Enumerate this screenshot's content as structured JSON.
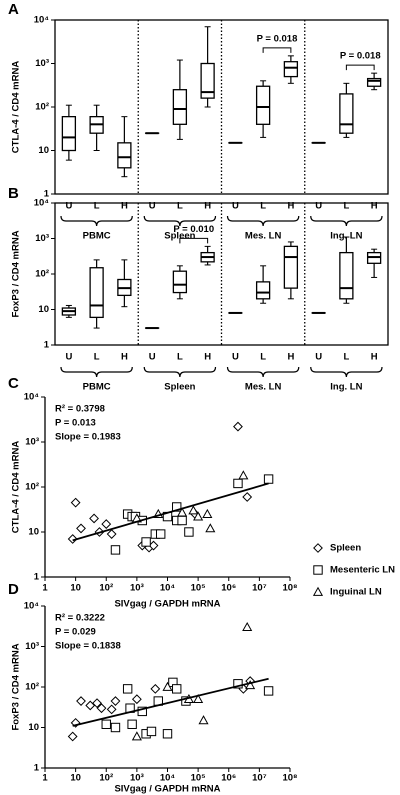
{
  "chart_data": [
    {
      "type": "box",
      "panel": "A",
      "ylabel": "CTLA-4 / CD4 mRNA",
      "log_y": true,
      "ylim": [
        1,
        10000
      ],
      "yticks": [
        1,
        10,
        {
          "value": 100,
          "label": "10²"
        },
        {
          "value": 1000,
          "label": "10³"
        },
        {
          "value": 10000,
          "label": "10⁴"
        }
      ],
      "groups": [
        {
          "name": "PBMC",
          "categories": [
            "U",
            "L",
            "H"
          ],
          "boxes": [
            {
              "whislo": 6,
              "q1": 10,
              "med": 20,
              "q3": 60,
              "whishi": 110
            },
            {
              "whislo": 10,
              "q1": 25,
              "med": 40,
              "q3": 60,
              "whishi": 110
            },
            {
              "whislo": 2.5,
              "q1": 4,
              "med": 7,
              "q3": 15,
              "whishi": 60
            }
          ]
        },
        {
          "name": "Spleen",
          "categories": [
            "U",
            "L",
            "H"
          ],
          "boxes": [
            {
              "whislo": 25,
              "q1": 25,
              "med": 25,
              "q3": 25,
              "whishi": 25
            },
            {
              "whislo": 18,
              "q1": 40,
              "med": 90,
              "q3": 250,
              "whishi": 1200
            },
            {
              "whislo": 100,
              "q1": 160,
              "med": 220,
              "q3": 1000,
              "whishi": 7000
            }
          ]
        },
        {
          "name": "Mes. LN",
          "categories": [
            "U",
            "L",
            "H"
          ],
          "boxes": [
            {
              "whislo": 15,
              "q1": 15,
              "med": 15,
              "q3": 15,
              "whishi": 15
            },
            {
              "whislo": 20,
              "q1": 40,
              "med": 100,
              "q3": 300,
              "whishi": 400
            },
            {
              "whislo": 350,
              "q1": 500,
              "med": 800,
              "q3": 1100,
              "whishi": 1500
            }
          ]
        },
        {
          "name": "Ing. LN",
          "categories": [
            "U",
            "L",
            "H"
          ],
          "boxes": [
            {
              "whislo": 15,
              "q1": 15,
              "med": 15,
              "q3": 15,
              "whishi": 15
            },
            {
              "whislo": 20,
              "q1": 25,
              "med": 40,
              "q3": 200,
              "whishi": 350
            },
            {
              "whislo": 250,
              "q1": 300,
              "med": 400,
              "q3": 450,
              "whishi": 600
            }
          ]
        }
      ],
      "annotations": [
        {
          "text": "P = 0.018",
          "group": 2,
          "between": [
            1,
            2
          ]
        },
        {
          "text": "P = 0.018",
          "group": 3,
          "between": [
            1,
            2
          ]
        }
      ]
    },
    {
      "type": "box",
      "panel": "B",
      "ylabel": "FoxP3 / CD4 mRNA",
      "log_y": true,
      "ylim": [
        1,
        10000
      ],
      "yticks": [
        1,
        10,
        {
          "value": 100,
          "label": "10²"
        },
        {
          "value": 1000,
          "label": "10³"
        },
        {
          "value": 10000,
          "label": "10⁴"
        }
      ],
      "groups": [
        {
          "name": "PBMC",
          "categories": [
            "U",
            "L",
            "H"
          ],
          "boxes": [
            {
              "whislo": 6,
              "q1": 7,
              "med": 9,
              "q3": 11,
              "whishi": 13
            },
            {
              "whislo": 3,
              "q1": 6,
              "med": 13,
              "q3": 150,
              "whishi": 250
            },
            {
              "whislo": 12,
              "q1": 25,
              "med": 40,
              "q3": 70,
              "whishi": 250
            }
          ]
        },
        {
          "name": "Spleen",
          "categories": [
            "U",
            "L",
            "H"
          ],
          "boxes": [
            {
              "whislo": 3,
              "q1": 3,
              "med": 3,
              "q3": 3,
              "whishi": 3
            },
            {
              "whislo": 20,
              "q1": 30,
              "med": 50,
              "q3": 120,
              "whishi": 170
            },
            {
              "whislo": 180,
              "q1": 220,
              "med": 300,
              "q3": 400,
              "whishi": 600
            }
          ]
        },
        {
          "name": "Mes. LN",
          "categories": [
            "U",
            "L",
            "H"
          ],
          "boxes": [
            {
              "whislo": 8,
              "q1": 8,
              "med": 8,
              "q3": 8,
              "whishi": 8
            },
            {
              "whislo": 15,
              "q1": 20,
              "med": 30,
              "q3": 60,
              "whishi": 170
            },
            {
              "whislo": 20,
              "q1": 40,
              "med": 300,
              "q3": 600,
              "whishi": 800
            }
          ]
        },
        {
          "name": "Ing. LN",
          "categories": [
            "U",
            "L",
            "H"
          ],
          "boxes": [
            {
              "whislo": 8,
              "q1": 8,
              "med": 8,
              "q3": 8,
              "whishi": 8
            },
            {
              "whislo": 15,
              "q1": 20,
              "med": 40,
              "q3": 400,
              "whishi": 1100
            },
            {
              "whislo": 80,
              "q1": 200,
              "med": 300,
              "q3": 400,
              "whishi": 500
            }
          ]
        }
      ],
      "annotations": [
        {
          "text": "P = 0.010",
          "group": 1,
          "between": [
            1,
            2
          ]
        }
      ]
    },
    {
      "type": "scatter",
      "panel": "C",
      "xlabel": "SIVgag / GAPDH mRNA",
      "ylabel": "CTLA-4 / CD4 mRNA",
      "log_x": true,
      "log_y": true,
      "xlim": [
        1,
        100000000
      ],
      "ylim": [
        1,
        10000
      ],
      "xticks": [
        1,
        10,
        {
          "value": 100,
          "label": "10²"
        },
        {
          "value": 1000,
          "label": "10³"
        },
        {
          "value": 10000,
          "label": "10⁴"
        },
        {
          "value": 100000,
          "label": "10⁵"
        },
        {
          "value": 1000000,
          "label": "10⁶"
        },
        {
          "value": 10000000,
          "label": "10⁷"
        },
        {
          "value": 100000000,
          "label": "10⁸"
        }
      ],
      "yticks": [
        1,
        10,
        {
          "value": 100,
          "label": "10²"
        },
        {
          "value": 1000,
          "label": "10³"
        },
        {
          "value": 10000,
          "label": "10⁴"
        }
      ],
      "stats": [
        "R² = 0.3798",
        "P = 0.013",
        "Slope = 0.1983"
      ],
      "fit": {
        "x": [
          8,
          20000000
        ],
        "y": [
          6.5,
          120
        ]
      },
      "legend": true,
      "series": [
        {
          "name": "Spleen",
          "marker": "diamond",
          "x": [
            8,
            10,
            15,
            40,
            60,
            100,
            150,
            1500,
            2500,
            3500,
            80000,
            2000000,
            4000000
          ],
          "y": [
            7,
            45,
            12,
            20,
            10,
            15,
            9,
            5,
            4.5,
            5,
            25,
            2200,
            60
          ]
        },
        {
          "name": "Mesenteric LN",
          "marker": "square",
          "x": [
            200,
            500,
            700,
            900,
            1500,
            2000,
            4000,
            6000,
            10000,
            20000,
            20000,
            30000,
            50000,
            2000000,
            20000000
          ],
          "y": [
            4,
            25,
            22,
            22,
            18,
            6,
            9,
            9,
            22,
            36,
            18,
            18,
            10,
            120,
            150
          ]
        },
        {
          "name": "Inguinal LN",
          "marker": "triangle",
          "x": [
            1000,
            5000,
            30000,
            70000,
            100000,
            200000,
            250000,
            3000000
          ],
          "y": [
            20,
            25,
            27,
            30,
            22,
            25,
            12,
            180
          ]
        }
      ]
    },
    {
      "type": "scatter",
      "panel": "D",
      "xlabel": "SIVgag / GAPDH mRNA",
      "ylabel": "FoxP3 / CD4 mRNA",
      "log_x": true,
      "log_y": true,
      "xlim": [
        1,
        100000000
      ],
      "ylim": [
        1,
        10000
      ],
      "xticks": [
        1,
        10,
        {
          "value": 100,
          "label": "10²"
        },
        {
          "value": 1000,
          "label": "10³"
        },
        {
          "value": 10000,
          "label": "10⁴"
        },
        {
          "value": 100000,
          "label": "10⁵"
        },
        {
          "value": 1000000,
          "label": "10⁶"
        },
        {
          "value": 10000000,
          "label": "10⁷"
        },
        {
          "value": 100000000,
          "label": "10⁸"
        }
      ],
      "yticks": [
        1,
        10,
        {
          "value": 100,
          "label": "10²"
        },
        {
          "value": 1000,
          "label": "10³"
        },
        {
          "value": 10000,
          "label": "10⁴"
        }
      ],
      "stats": [
        "R² = 0.3222",
        "P = 0.029",
        "Slope = 0.1838"
      ],
      "fit": {
        "x": [
          8,
          20000000
        ],
        "y": [
          11,
          160
        ]
      },
      "series": [
        {
          "marker": "diamond",
          "x": [
            8,
            10,
            15,
            30,
            50,
            70,
            150,
            200,
            1000,
            4000,
            3000000,
            5000000
          ],
          "y": [
            6,
            13,
            45,
            35,
            40,
            30,
            28,
            45,
            50,
            90,
            90,
            140
          ]
        },
        {
          "marker": "square",
          "x": [
            100,
            200,
            500,
            600,
            700,
            1500,
            2000,
            3000,
            5000,
            10000,
            15000,
            20000,
            40000,
            2000000,
            20000000
          ],
          "y": [
            12,
            10,
            90,
            30,
            12,
            25,
            7,
            8,
            45,
            7,
            130,
            90,
            45,
            120,
            80
          ]
        },
        {
          "marker": "triangle",
          "x": [
            1000,
            10000,
            50000,
            100000,
            150000,
            4000000,
            5000000
          ],
          "y": [
            6,
            100,
            50,
            50,
            15,
            3000,
            110
          ]
        }
      ]
    }
  ]
}
